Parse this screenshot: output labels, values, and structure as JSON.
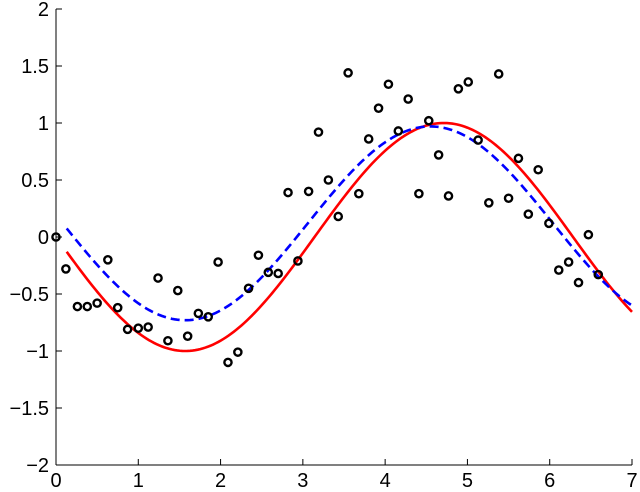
{
  "chart_data": {
    "type": "scatter",
    "title": "",
    "xlabel": "",
    "ylabel": "",
    "xlim": [
      0,
      7
    ],
    "ylim": [
      -2,
      2
    ],
    "grid": false,
    "x_ticks": [
      {
        "value": 0,
        "label": "0"
      },
      {
        "value": 1,
        "label": "1"
      },
      {
        "value": 2,
        "label": "2"
      },
      {
        "value": 3,
        "label": "3"
      },
      {
        "value": 4,
        "label": "4"
      },
      {
        "value": 5,
        "label": "5"
      },
      {
        "value": 6,
        "label": "6"
      },
      {
        "value": 7,
        "label": "7"
      }
    ],
    "y_ticks": [
      {
        "value": 2,
        "label": "2"
      },
      {
        "value": 1.5,
        "label": "1.5"
      },
      {
        "value": 1,
        "label": "1"
      },
      {
        "value": 0.5,
        "label": "0.5"
      },
      {
        "value": 0,
        "label": "0"
      },
      {
        "value": -0.5,
        "label": "−0.5"
      },
      {
        "value": -1,
        "label": "−1"
      },
      {
        "value": -1.5,
        "label": "−1.5"
      },
      {
        "value": -2,
        "label": "−2"
      }
    ],
    "series": [
      {
        "kind": "scatter",
        "color": "#000000",
        "marker": "open-circle",
        "points": [
          [
            0.0,
            0.0
          ],
          [
            0.12,
            -0.28
          ],
          [
            0.26,
            -0.61
          ],
          [
            0.38,
            -0.61
          ],
          [
            0.5,
            -0.58
          ],
          [
            0.63,
            -0.2
          ],
          [
            0.75,
            -0.62
          ],
          [
            0.87,
            -0.81
          ],
          [
            1.0,
            -0.8
          ],
          [
            1.12,
            -0.79
          ],
          [
            1.24,
            -0.36
          ],
          [
            1.36,
            -0.91
          ],
          [
            1.48,
            -0.47
          ],
          [
            1.6,
            -0.87
          ],
          [
            1.73,
            -0.67
          ],
          [
            1.85,
            -0.7
          ],
          [
            1.97,
            -0.22
          ],
          [
            2.09,
            -1.1
          ],
          [
            2.21,
            -1.01
          ],
          [
            2.34,
            -0.45
          ],
          [
            2.46,
            -0.16
          ],
          [
            2.58,
            -0.31
          ],
          [
            2.7,
            -0.32
          ],
          [
            2.82,
            0.39
          ],
          [
            2.94,
            -0.21
          ],
          [
            3.07,
            0.4
          ],
          [
            3.19,
            0.92
          ],
          [
            3.31,
            0.5
          ],
          [
            3.43,
            0.18
          ],
          [
            3.55,
            1.44
          ],
          [
            3.68,
            0.38
          ],
          [
            3.8,
            0.86
          ],
          [
            3.92,
            1.13
          ],
          [
            4.04,
            1.34
          ],
          [
            4.16,
            0.93
          ],
          [
            4.28,
            1.21
          ],
          [
            4.41,
            0.38
          ],
          [
            4.53,
            1.02
          ],
          [
            4.65,
            0.72
          ],
          [
            4.77,
            0.36
          ],
          [
            4.89,
            1.3
          ],
          [
            5.01,
            1.36
          ],
          [
            5.13,
            0.85
          ],
          [
            5.26,
            0.3
          ],
          [
            5.38,
            1.43
          ],
          [
            5.5,
            0.34
          ],
          [
            5.62,
            0.69
          ],
          [
            5.74,
            0.2
          ],
          [
            5.86,
            0.59
          ],
          [
            5.99,
            0.12
          ],
          [
            6.11,
            -0.29
          ],
          [
            6.23,
            -0.22
          ],
          [
            6.35,
            -0.4
          ],
          [
            6.47,
            0.02
          ],
          [
            6.59,
            -0.33
          ]
        ]
      },
      {
        "kind": "line",
        "color": "#ff0000",
        "style": "solid",
        "fn": "sin",
        "scale": 1.0,
        "x_range": [
          0.13,
          7.0
        ]
      },
      {
        "kind": "line",
        "color": "#0000ff",
        "style": "dashed",
        "fn": "sin",
        "scale": 0.8,
        "x_range": [
          0.13,
          7.0
        ],
        "peak_x": 4.55,
        "trough_x": 1.57,
        "peak_y": 0.97,
        "trough_y": -0.73
      }
    ]
  }
}
